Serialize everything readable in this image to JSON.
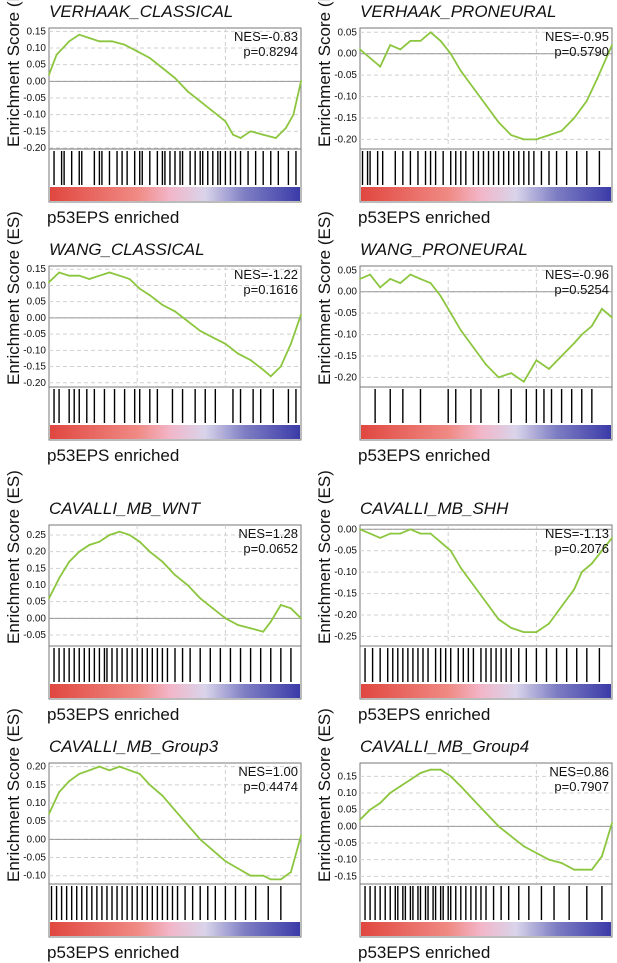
{
  "colors": {
    "curve": "#8cc63f",
    "hit": "#000000",
    "ranked_red": "#e0473f",
    "ranked_blue": "#3b3ba8",
    "ranked_pink": "#f2b6c9"
  },
  "chart_data": [
    {
      "type": "line",
      "title": "VERHAAK_CLASSICAL",
      "ylabel": "Enrichment Score (ES)",
      "xlabel": "p53EPS enriched",
      "ylim": [
        -0.2,
        0.16
      ],
      "yticks": [
        "0.15",
        "0.10",
        "0.05",
        "0.00",
        "-0.05",
        "-0.10",
        "-0.15",
        "-0.20"
      ],
      "ytick_values": [
        0.15,
        0.1,
        0.05,
        0.0,
        -0.05,
        -0.1,
        -0.15,
        -0.2
      ],
      "x": [
        0,
        0.03,
        0.08,
        0.12,
        0.16,
        0.2,
        0.25,
        0.3,
        0.35,
        0.4,
        0.45,
        0.5,
        0.55,
        0.6,
        0.65,
        0.7,
        0.73,
        0.76,
        0.8,
        0.85,
        0.9,
        0.94,
        0.97,
        1.0
      ],
      "y": [
        0.02,
        0.08,
        0.12,
        0.14,
        0.13,
        0.12,
        0.12,
        0.11,
        0.09,
        0.07,
        0.04,
        0.01,
        -0.03,
        -0.06,
        -0.09,
        -0.12,
        -0.16,
        -0.17,
        -0.15,
        -0.16,
        -0.17,
        -0.14,
        -0.1,
        0.0
      ],
      "nes": "NES=-0.83",
      "p": "p=0.8294",
      "hits": [
        0.02,
        0.05,
        0.06,
        0.09,
        0.12,
        0.13,
        0.18,
        0.2,
        0.21,
        0.24,
        0.27,
        0.29,
        0.31,
        0.34,
        0.36,
        0.37,
        0.4,
        0.43,
        0.45,
        0.46,
        0.48,
        0.5,
        0.52,
        0.53,
        0.56,
        0.58,
        0.6,
        0.61,
        0.63,
        0.65,
        0.67,
        0.68,
        0.7,
        0.72,
        0.74,
        0.76,
        0.79,
        0.82,
        0.85,
        0.88,
        0.91,
        0.95,
        0.98
      ]
    },
    {
      "type": "line",
      "title": "VERHAAK_PRONEURAL",
      "ylabel": "Enrichment Score (ES)",
      "xlabel": "p53EPS enriched",
      "ylim": [
        -0.22,
        0.06
      ],
      "yticks": [
        "0.05",
        "0.00",
        "-0.05",
        "-0.10",
        "-0.15",
        "-0.20"
      ],
      "ytick_values": [
        0.05,
        0.0,
        -0.05,
        -0.1,
        -0.15,
        -0.2
      ],
      "x": [
        0,
        0.04,
        0.08,
        0.12,
        0.16,
        0.2,
        0.24,
        0.28,
        0.32,
        0.36,
        0.4,
        0.45,
        0.5,
        0.55,
        0.6,
        0.65,
        0.7,
        0.75,
        0.8,
        0.85,
        0.9,
        0.94,
        0.97,
        1.0
      ],
      "y": [
        0.01,
        -0.01,
        -0.03,
        0.02,
        0.01,
        0.03,
        0.03,
        0.05,
        0.03,
        0.0,
        -0.04,
        -0.08,
        -0.12,
        -0.16,
        -0.19,
        -0.2,
        -0.2,
        -0.19,
        -0.18,
        -0.15,
        -0.11,
        -0.06,
        -0.02,
        0.02
      ],
      "nes": "NES=-0.95",
      "p": "p=0.5790",
      "hits": [
        0.01,
        0.03,
        0.04,
        0.07,
        0.09,
        0.14,
        0.17,
        0.2,
        0.23,
        0.26,
        0.28,
        0.3,
        0.33,
        0.36,
        0.38,
        0.4,
        0.42,
        0.45,
        0.47,
        0.49,
        0.51,
        0.53,
        0.55,
        0.57,
        0.59,
        0.61,
        0.63,
        0.65,
        0.67,
        0.69,
        0.72,
        0.75,
        0.78,
        0.82,
        0.86,
        0.9,
        0.95
      ]
    },
    {
      "type": "line",
      "title": "WANG_CLASSICAL",
      "ylabel": "Enrichment Score (ES)",
      "xlabel": "p53EPS enriched",
      "ylim": [
        -0.21,
        0.16
      ],
      "yticks": [
        "0.15",
        "0.10",
        "0.05",
        "0.00",
        "-0.05",
        "-0.10",
        "-0.15",
        "-0.20"
      ],
      "ytick_values": [
        0.15,
        0.1,
        0.05,
        0.0,
        -0.05,
        -0.1,
        -0.15,
        -0.2
      ],
      "x": [
        0,
        0.04,
        0.08,
        0.12,
        0.16,
        0.2,
        0.24,
        0.28,
        0.32,
        0.36,
        0.4,
        0.45,
        0.5,
        0.55,
        0.6,
        0.65,
        0.7,
        0.75,
        0.8,
        0.85,
        0.88,
        0.92,
        0.96,
        1.0
      ],
      "y": [
        0.11,
        0.14,
        0.13,
        0.13,
        0.12,
        0.13,
        0.14,
        0.13,
        0.12,
        0.09,
        0.07,
        0.04,
        0.02,
        -0.01,
        -0.04,
        -0.06,
        -0.08,
        -0.11,
        -0.13,
        -0.16,
        -0.18,
        -0.15,
        -0.08,
        0.01
      ],
      "nes": "NES=-1.22",
      "p": "p=0.1616",
      "hits": [
        0.02,
        0.04,
        0.08,
        0.1,
        0.12,
        0.15,
        0.18,
        0.22,
        0.26,
        0.3,
        0.34,
        0.36,
        0.4,
        0.43,
        0.49,
        0.53,
        0.58,
        0.62,
        0.66,
        0.73,
        0.76,
        0.81,
        0.84,
        0.89,
        0.95,
        0.98
      ]
    },
    {
      "type": "line",
      "title": "WANG_PRONEURAL",
      "ylabel": "Enrichment Score (ES)",
      "xlabel": "p53EPS enriched",
      "ylim": [
        -0.22,
        0.06
      ],
      "yticks": [
        "0.05",
        "0.00",
        "-0.05",
        "-0.10",
        "-0.15",
        "-0.20"
      ],
      "ytick_values": [
        0.05,
        0.0,
        -0.05,
        -0.1,
        -0.15,
        -0.2
      ],
      "x": [
        0,
        0.04,
        0.08,
        0.12,
        0.16,
        0.2,
        0.24,
        0.28,
        0.32,
        0.36,
        0.4,
        0.45,
        0.5,
        0.55,
        0.6,
        0.65,
        0.7,
        0.75,
        0.8,
        0.85,
        0.88,
        0.92,
        0.96,
        1.0
      ],
      "y": [
        0.03,
        0.04,
        0.01,
        0.03,
        0.02,
        0.04,
        0.03,
        0.02,
        -0.01,
        -0.05,
        -0.09,
        -0.13,
        -0.17,
        -0.2,
        -0.19,
        -0.21,
        -0.16,
        -0.18,
        -0.15,
        -0.12,
        -0.1,
        -0.08,
        -0.04,
        -0.06
      ],
      "nes": "NES=-0.96",
      "p": "p=0.5254",
      "hits": [
        0.06,
        0.12,
        0.17,
        0.24,
        0.35,
        0.38,
        0.44,
        0.48,
        0.55,
        0.6,
        0.66,
        0.7,
        0.73,
        0.76,
        0.8,
        0.84,
        0.88,
        0.92
      ]
    },
    {
      "type": "line",
      "title": "CAVALLI_MB_WNT",
      "ylabel": "Enrichment Score (ES)",
      "xlabel": "p53EPS enriched",
      "ylim": [
        -0.08,
        0.28
      ],
      "yticks": [
        "0.25",
        "0.20",
        "0.15",
        "0.10",
        "0.05",
        "0.00",
        "-0.05"
      ],
      "ytick_values": [
        0.25,
        0.2,
        0.15,
        0.1,
        0.05,
        0.0,
        -0.05
      ],
      "x": [
        0,
        0.04,
        0.08,
        0.12,
        0.16,
        0.2,
        0.24,
        0.28,
        0.32,
        0.36,
        0.4,
        0.45,
        0.5,
        0.55,
        0.6,
        0.65,
        0.7,
        0.75,
        0.8,
        0.85,
        0.88,
        0.92,
        0.96,
        1.0
      ],
      "y": [
        0.06,
        0.12,
        0.17,
        0.2,
        0.22,
        0.23,
        0.25,
        0.26,
        0.25,
        0.23,
        0.2,
        0.17,
        0.13,
        0.1,
        0.06,
        0.03,
        0.0,
        -0.02,
        -0.03,
        -0.04,
        -0.01,
        0.04,
        0.03,
        0.0
      ],
      "nes": "NES=1.28",
      "p": "p=0.0652",
      "hits": [
        0.02,
        0.04,
        0.06,
        0.08,
        0.1,
        0.12,
        0.14,
        0.16,
        0.18,
        0.2,
        0.22,
        0.23,
        0.25,
        0.27,
        0.29,
        0.31,
        0.33,
        0.35,
        0.37,
        0.39,
        0.41,
        0.43,
        0.45,
        0.47,
        0.5,
        0.53,
        0.56,
        0.6,
        0.64,
        0.68,
        0.72,
        0.76,
        0.8,
        0.84,
        0.88,
        0.92,
        0.96
      ]
    },
    {
      "type": "line",
      "title": "CAVALLI_MB_SHH",
      "ylabel": "Enrichment Score (ES)",
      "xlabel": "p53EPS enriched",
      "ylim": [
        -0.27,
        0.01
      ],
      "yticks": [
        "0.00",
        "-0.05",
        "-0.10",
        "-0.15",
        "-0.20",
        "-0.25"
      ],
      "ytick_values": [
        0.0,
        -0.05,
        -0.1,
        -0.15,
        -0.2,
        -0.25
      ],
      "x": [
        0,
        0.04,
        0.08,
        0.12,
        0.16,
        0.2,
        0.24,
        0.28,
        0.32,
        0.36,
        0.4,
        0.45,
        0.5,
        0.55,
        0.6,
        0.65,
        0.7,
        0.75,
        0.8,
        0.85,
        0.88,
        0.92,
        0.96,
        1.0
      ],
      "y": [
        0.0,
        -0.01,
        -0.02,
        -0.01,
        -0.01,
        0.0,
        -0.01,
        -0.01,
        -0.03,
        -0.05,
        -0.09,
        -0.13,
        -0.17,
        -0.21,
        -0.23,
        -0.24,
        -0.24,
        -0.22,
        -0.18,
        -0.14,
        -0.1,
        -0.08,
        -0.05,
        -0.02
      ],
      "nes": "NES=-1.13",
      "p": "p=0.2076",
      "hits": [
        0.02,
        0.05,
        0.08,
        0.11,
        0.13,
        0.15,
        0.17,
        0.19,
        0.21,
        0.23,
        0.25,
        0.27,
        0.3,
        0.32,
        0.34,
        0.36,
        0.39,
        0.41,
        0.43,
        0.45,
        0.48,
        0.5,
        0.52,
        0.54,
        0.56,
        0.58,
        0.6,
        0.63,
        0.66,
        0.7,
        0.74,
        0.78,
        0.82,
        0.86,
        0.9,
        0.95
      ]
    },
    {
      "type": "line",
      "title": "CAVALLI_MB_Group3",
      "ylabel": "Enrichment Score (ES)",
      "xlabel": "p53EPS enriched",
      "ylim": [
        -0.12,
        0.21
      ],
      "yticks": [
        "0.20",
        "0.15",
        "0.10",
        "0.05",
        "0.00",
        "-0.05",
        "-0.10"
      ],
      "ytick_values": [
        0.2,
        0.15,
        0.1,
        0.05,
        0.0,
        -0.05,
        -0.1
      ],
      "x": [
        0,
        0.04,
        0.08,
        0.12,
        0.16,
        0.2,
        0.24,
        0.28,
        0.32,
        0.36,
        0.4,
        0.45,
        0.5,
        0.55,
        0.6,
        0.65,
        0.7,
        0.75,
        0.8,
        0.85,
        0.88,
        0.92,
        0.96,
        1.0
      ],
      "y": [
        0.07,
        0.13,
        0.16,
        0.18,
        0.19,
        0.2,
        0.19,
        0.2,
        0.19,
        0.18,
        0.15,
        0.12,
        0.08,
        0.04,
        0.0,
        -0.03,
        -0.06,
        -0.08,
        -0.1,
        -0.1,
        -0.11,
        -0.11,
        -0.09,
        0.01
      ],
      "nes": "NES=1.00",
      "p": "p=0.4474",
      "hits": [
        0.01,
        0.03,
        0.05,
        0.07,
        0.09,
        0.11,
        0.13,
        0.15,
        0.17,
        0.19,
        0.21,
        0.23,
        0.25,
        0.27,
        0.29,
        0.31,
        0.33,
        0.35,
        0.37,
        0.39,
        0.41,
        0.43,
        0.45,
        0.47,
        0.49,
        0.51,
        0.54,
        0.57,
        0.6,
        0.63,
        0.66,
        0.7,
        0.74,
        0.78,
        0.82,
        0.87,
        0.92
      ]
    },
    {
      "type": "line",
      "title": "CAVALLI_MB_Group4",
      "ylabel": "Enrichment Score (ES)",
      "xlabel": "p53EPS enriched",
      "ylim": [
        -0.17,
        0.19
      ],
      "yticks": [
        "0.15",
        "0.10",
        "0.05",
        "0.00",
        "-0.05",
        "-0.10",
        "-0.15"
      ],
      "ytick_values": [
        0.15,
        0.1,
        0.05,
        0.0,
        -0.05,
        -0.1,
        -0.15
      ],
      "x": [
        0,
        0.04,
        0.08,
        0.12,
        0.16,
        0.2,
        0.24,
        0.28,
        0.32,
        0.36,
        0.4,
        0.45,
        0.5,
        0.55,
        0.6,
        0.65,
        0.7,
        0.75,
        0.8,
        0.85,
        0.88,
        0.92,
        0.96,
        1.0
      ],
      "y": [
        0.02,
        0.05,
        0.07,
        0.1,
        0.12,
        0.14,
        0.16,
        0.17,
        0.17,
        0.15,
        0.12,
        0.08,
        0.04,
        0.0,
        -0.03,
        -0.06,
        -0.08,
        -0.1,
        -0.11,
        -0.13,
        -0.13,
        -0.13,
        -0.09,
        0.01
      ],
      "nes": "NES=0.86",
      "p": "p=0.7907",
      "hits": [
        0.02,
        0.04,
        0.06,
        0.08,
        0.1,
        0.12,
        0.14,
        0.15,
        0.17,
        0.18,
        0.2,
        0.21,
        0.23,
        0.24,
        0.26,
        0.27,
        0.29,
        0.3,
        0.32,
        0.33,
        0.35,
        0.36,
        0.38,
        0.4,
        0.42,
        0.44,
        0.46,
        0.48,
        0.5,
        0.53,
        0.56,
        0.59,
        0.63,
        0.67,
        0.72,
        0.77,
        0.83,
        0.9,
        0.96
      ]
    }
  ]
}
